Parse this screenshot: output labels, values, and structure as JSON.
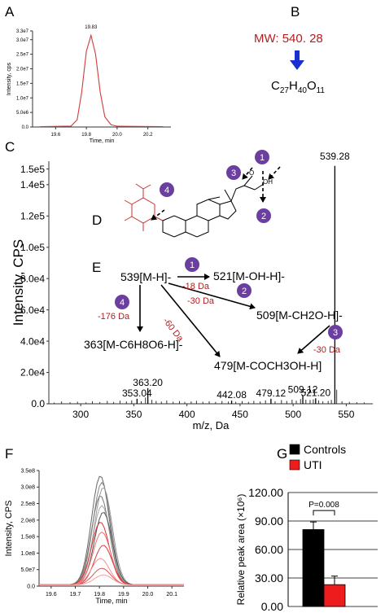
{
  "panel_letters": {
    "a": "A",
    "b": "B",
    "c": "C",
    "d": "D",
    "e": "E",
    "f": "F",
    "g": "G"
  },
  "colors": {
    "mw": "#b02020",
    "arrow_blue": "#1a2fcf",
    "purple": "#6b3fa0",
    "red_label": "#b02020",
    "trace_red": "#d23a3a",
    "control_bar": "#000000",
    "uti_bar": "#ee1c1c"
  },
  "panel_b": {
    "mw_text": "MW: 540. 28",
    "formula": [
      {
        "text": "C",
        "sub": false
      },
      {
        "text": "27",
        "sub": true
      },
      {
        "text": "H",
        "sub": false
      },
      {
        "text": "40",
        "sub": true
      },
      {
        "text": "O",
        "sub": false
      },
      {
        "text": "11",
        "sub": true
      }
    ]
  },
  "panel_d_labels": {
    "oh1": "OH",
    "o1": "O"
  },
  "panel_e": {
    "ions": {
      "parent": "539[M-H]-",
      "i521": "521[M-OH-H]-",
      "i509": "509[M-CH2O-H]-",
      "i363": "363[M-C6H8O6-H]-",
      "i479": "479[M-COCH3OH-H]"
    },
    "losses": {
      "l18": "-18 Da",
      "l30a": "-30 Da",
      "l176": "-176 Da",
      "l60": "-60 Da",
      "l30b": "-30 Da"
    },
    "badges": [
      "1",
      "2",
      "3",
      "4"
    ]
  },
  "chart_data": [
    {
      "id": "A",
      "type": "line",
      "ylabel": "Intensity, cps",
      "xlabel": "Time, min",
      "xlim": [
        19.45,
        20.35
      ],
      "ylim": [
        0,
        33000000.0
      ],
      "xticks": [
        "19.6",
        "19.8",
        "20.0",
        "20.2"
      ],
      "xtick_values": [
        19.6,
        19.8,
        20.0,
        20.2
      ],
      "yticks": [
        "0.0",
        "5.0e6",
        "1.0e7",
        "1.5e7",
        "2.0e7",
        "2.5e7",
        "3.0e7",
        "3.3e7"
      ],
      "ytick_values": [
        0,
        5000000.0,
        10000000.0,
        15000000.0,
        20000000.0,
        25000000.0,
        30000000.0,
        33000000.0
      ],
      "peak_label": "19.83",
      "series": [
        {
          "x": [
            19.5,
            19.7,
            19.74,
            19.77,
            19.8,
            19.83,
            19.86,
            19.89,
            19.92,
            19.96,
            20.0,
            20.3
          ],
          "y": [
            120000.0,
            300000.0,
            2500000.0,
            12000000.0,
            26000000.0,
            31500000.0,
            25000000.0,
            12000000.0,
            3500000.0,
            800000.0,
            250000.0,
            150000.0
          ]
        }
      ]
    },
    {
      "id": "C",
      "type": "bar",
      "ylabel": "Intensity, CPS",
      "xlabel": "m/z, Da",
      "xlim": [
        270,
        575
      ],
      "ylim": [
        0,
        155000.0
      ],
      "xticks": [
        "300",
        "350",
        "400",
        "450",
        "500",
        "550"
      ],
      "xtick_values": [
        300,
        350,
        400,
        450,
        500,
        550
      ],
      "yticks": [
        "0.0",
        "2.0e4",
        "4.0e4",
        "6.0e4",
        "8.0e4",
        "1.0e5",
        "1.2e5",
        "1.4e5",
        "1.5e5"
      ],
      "ytick_values": [
        0,
        20000.0,
        40000.0,
        60000.0,
        80000.0,
        100000.0,
        120000.0,
        140000.0,
        150000.0
      ],
      "labeled_peaks": [
        {
          "mz": 353.04,
          "intensity": 3200,
          "label": "353.04"
        },
        {
          "mz": 363.2,
          "intensity": 10000,
          "label": "363.20"
        },
        {
          "mz": 442.08,
          "intensity": 2000,
          "label": "442.08"
        },
        {
          "mz": 479.12,
          "intensity": 3200,
          "label": "479.12"
        },
        {
          "mz": 509.12,
          "intensity": 5500,
          "label": "509.12"
        },
        {
          "mz": 521.2,
          "intensity": 3500,
          "label": "521.20"
        },
        {
          "mz": 539.28,
          "intensity": 152000.0,
          "label": "539.28"
        }
      ],
      "minor_peaks": [
        {
          "mz": 275,
          "intensity": 800
        },
        {
          "mz": 282,
          "intensity": 1500
        },
        {
          "mz": 290,
          "intensity": 1000
        },
        {
          "mz": 297,
          "intensity": 1300
        },
        {
          "mz": 305,
          "intensity": 900
        },
        {
          "mz": 311,
          "intensity": 1600
        },
        {
          "mz": 318,
          "intensity": 1100
        },
        {
          "mz": 325,
          "intensity": 1800
        },
        {
          "mz": 331,
          "intensity": 1200
        },
        {
          "mz": 337,
          "intensity": 2000
        },
        {
          "mz": 343,
          "intensity": 1500
        },
        {
          "mz": 348,
          "intensity": 2200
        },
        {
          "mz": 357,
          "intensity": 1600
        },
        {
          "mz": 361,
          "intensity": 4000
        },
        {
          "mz": 367,
          "intensity": 2500
        },
        {
          "mz": 371,
          "intensity": 1800
        },
        {
          "mz": 376,
          "intensity": 1400
        },
        {
          "mz": 381,
          "intensity": 2100
        },
        {
          "mz": 387,
          "intensity": 1300
        },
        {
          "mz": 393,
          "intensity": 1700
        },
        {
          "mz": 398,
          "intensity": 1200
        },
        {
          "mz": 404,
          "intensity": 1500
        },
        {
          "mz": 409,
          "intensity": 1900
        },
        {
          "mz": 415,
          "intensity": 1300
        },
        {
          "mz": 421,
          "intensity": 1600
        },
        {
          "mz": 427,
          "intensity": 1200
        },
        {
          "mz": 433,
          "intensity": 1800
        },
        {
          "mz": 439,
          "intensity": 1400
        },
        {
          "mz": 446,
          "intensity": 1300
        },
        {
          "mz": 452,
          "intensity": 1700
        },
        {
          "mz": 458,
          "intensity": 1200
        },
        {
          "mz": 463,
          "intensity": 1900
        },
        {
          "mz": 469,
          "intensity": 1500
        },
        {
          "mz": 474,
          "intensity": 2200
        },
        {
          "mz": 483,
          "intensity": 1600
        },
        {
          "mz": 489,
          "intensity": 2400
        },
        {
          "mz": 494,
          "intensity": 1800
        },
        {
          "mz": 499,
          "intensity": 2600
        },
        {
          "mz": 503,
          "intensity": 2000
        },
        {
          "mz": 507,
          "intensity": 3000
        },
        {
          "mz": 512,
          "intensity": 2600
        },
        {
          "mz": 516,
          "intensity": 2400
        },
        {
          "mz": 519,
          "intensity": 2800
        },
        {
          "mz": 524,
          "intensity": 2200
        },
        {
          "mz": 528,
          "intensity": 1600
        },
        {
          "mz": 533,
          "intensity": 1800
        },
        {
          "mz": 536,
          "intensity": 2500
        },
        {
          "mz": 541,
          "intensity": 9000
        },
        {
          "mz": 546,
          "intensity": 1600
        },
        {
          "mz": 553,
          "intensity": 1200
        },
        {
          "mz": 560,
          "intensity": 1000
        },
        {
          "mz": 567,
          "intensity": 900
        }
      ]
    },
    {
      "id": "F",
      "type": "line",
      "ylabel": "Intensity, CPS",
      "xlabel": "Time, min",
      "xlim": [
        19.55,
        20.15
      ],
      "ylim": [
        0,
        350000000.0
      ],
      "xticks": [
        "19.6",
        "19.7",
        "19.8",
        "19.9",
        "20.0",
        "20.1"
      ],
      "xtick_values": [
        19.6,
        19.7,
        19.8,
        19.9,
        20.0,
        20.1
      ],
      "yticks": [
        "0.0",
        "5.0e7",
        "1.0e8",
        "1.5e8",
        "2.0e8",
        "2.5e8",
        "3.0e8",
        "3.5e8"
      ],
      "ytick_values": [
        0,
        50000000.0,
        100000000.0,
        150000000.0,
        200000000.0,
        250000000.0,
        300000000.0,
        350000000.0
      ],
      "peak_center": 19.81,
      "peak_width": 0.052,
      "series": [
        {
          "group": "Controls",
          "color": "#666666",
          "peak": 330000000.0
        },
        {
          "group": "Controls",
          "color": "#888888",
          "peak": 310000000.0
        },
        {
          "group": "Controls",
          "color": "#999999",
          "peak": 295000000.0
        },
        {
          "group": "Controls",
          "color": "#777777",
          "peak": 270000000.0
        },
        {
          "group": "Controls",
          "color": "#aaaaaa",
          "peak": 240000000.0
        },
        {
          "group": "Controls",
          "color": "#555555",
          "peak": 220000000.0
        },
        {
          "group": "UTI",
          "color": "#e03030",
          "peak": 190000000.0
        },
        {
          "group": "UTI",
          "color": "#f07070",
          "peak": 160000000.0
        },
        {
          "group": "UTI",
          "color": "#d04040",
          "peak": 120000000.0
        },
        {
          "group": "UTI",
          "color": "#f59090",
          "peak": 80000000.0
        },
        {
          "group": "UTI",
          "color": "#e05050",
          "peak": 50000000.0
        },
        {
          "group": "UTI",
          "color": "#f7a0a0",
          "peak": 30000000.0
        }
      ]
    },
    {
      "id": "G",
      "type": "bar",
      "ylabel": "Relative peak area (×10⁶)",
      "ylim": [
        0,
        120
      ],
      "yticks": [
        "0.00",
        "30.00",
        "60.00",
        "90.00",
        "120.00"
      ],
      "ytick_values": [
        0,
        30,
        60,
        90,
        120
      ],
      "categories": [
        "Controls",
        "UTI"
      ],
      "values": [
        81,
        23
      ],
      "errors": [
        8,
        9
      ],
      "colors": [
        "#000000",
        "#ee1c1c"
      ],
      "legend": [
        "Controls",
        "UTI"
      ],
      "annotation": "P=0.008"
    }
  ]
}
